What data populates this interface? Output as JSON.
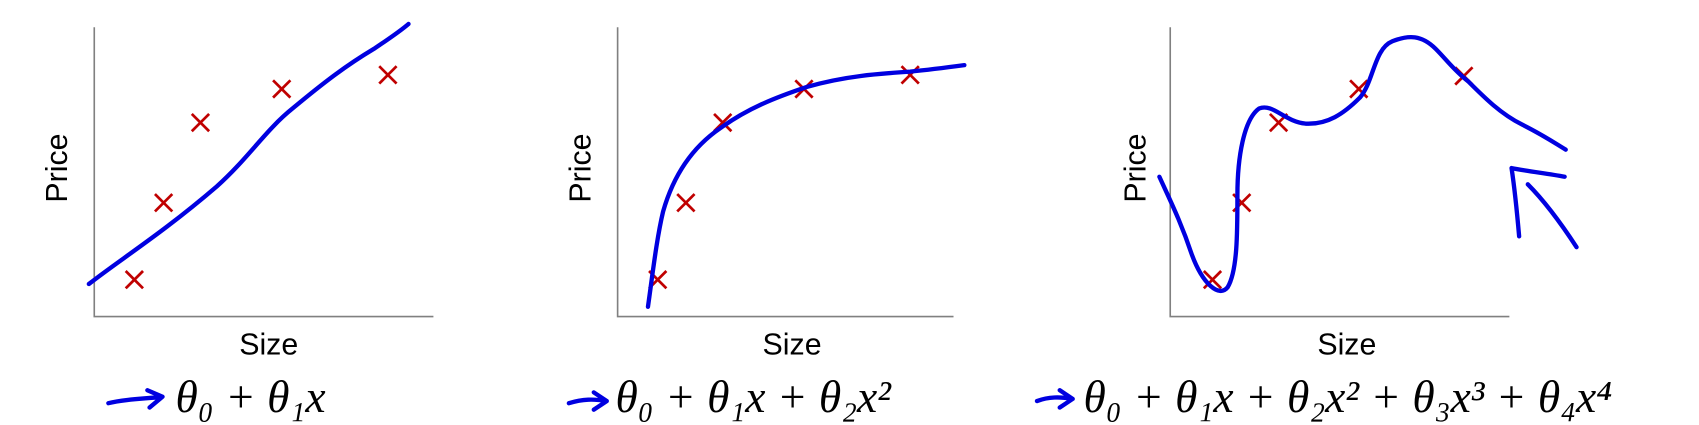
{
  "panels": [
    {
      "y_label": "Price",
      "x_label": "Size",
      "formula": "θ₀ + θ₁x"
    },
    {
      "y_label": "Price",
      "x_label": "Size",
      "formula": "θ₀ + θ₁x + θ₂x²"
    },
    {
      "y_label": "Price",
      "x_label": "Size",
      "formula": "θ₀ + θ₁x + θ₂x² + θ₃x³ + θ₄x⁴"
    }
  ]
}
